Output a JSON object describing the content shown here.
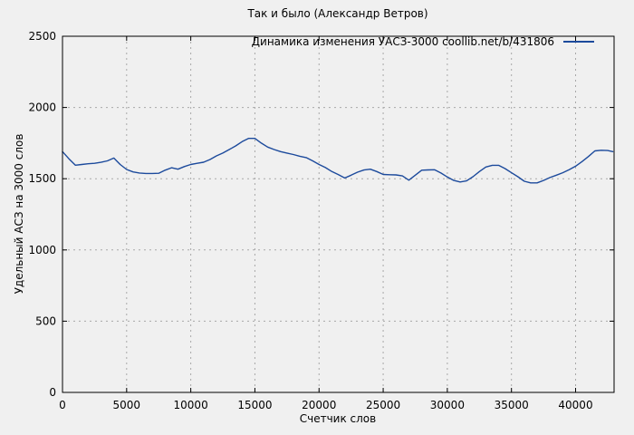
{
  "colors": {
    "background": "#f0f0f0",
    "plot_border": "#000000",
    "grid": "#a8a8a8",
    "text": "#000000",
    "line": "#1c4a9c"
  },
  "chart_data": {
    "type": "line",
    "title": "Так и было (Александр Ветров)",
    "xlabel": "Счетчик слов",
    "ylabel": "Удельный АСЗ на 3000 слов",
    "legend": {
      "label": "Динамика изменения УАСЗ-3000  coollib.net/b/431806",
      "position": "top-right-inside"
    },
    "xlim": [
      0,
      43000
    ],
    "ylim": [
      0,
      2500
    ],
    "x_ticks": [
      0,
      5000,
      10000,
      15000,
      20000,
      25000,
      30000,
      35000,
      40000
    ],
    "y_ticks": [
      0,
      500,
      1000,
      1500,
      2000,
      2500
    ],
    "grid": true,
    "series": [
      {
        "name": "Динамика изменения УАСЗ-3000  coollib.net/b/431806",
        "color": "#1c4a9c",
        "points": [
          [
            0,
            1690
          ],
          [
            500,
            1640
          ],
          [
            1000,
            1595
          ],
          [
            1500,
            1600
          ],
          [
            2000,
            1605
          ],
          [
            2500,
            1608
          ],
          [
            3000,
            1615
          ],
          [
            3500,
            1625
          ],
          [
            4000,
            1645
          ],
          [
            4500,
            1600
          ],
          [
            5000,
            1565
          ],
          [
            5500,
            1548
          ],
          [
            6000,
            1540
          ],
          [
            6500,
            1537
          ],
          [
            7000,
            1537
          ],
          [
            7500,
            1538
          ],
          [
            8000,
            1560
          ],
          [
            8500,
            1577
          ],
          [
            9000,
            1567
          ],
          [
            9500,
            1585
          ],
          [
            10000,
            1600
          ],
          [
            10500,
            1608
          ],
          [
            11000,
            1616
          ],
          [
            11500,
            1635
          ],
          [
            12000,
            1660
          ],
          [
            12500,
            1680
          ],
          [
            13000,
            1705
          ],
          [
            13500,
            1730
          ],
          [
            14000,
            1760
          ],
          [
            14500,
            1783
          ],
          [
            15000,
            1783
          ],
          [
            15500,
            1750
          ],
          [
            16000,
            1722
          ],
          [
            16500,
            1705
          ],
          [
            17000,
            1690
          ],
          [
            17500,
            1680
          ],
          [
            18000,
            1670
          ],
          [
            18500,
            1658
          ],
          [
            19000,
            1648
          ],
          [
            19500,
            1625
          ],
          [
            20000,
            1600
          ],
          [
            20500,
            1578
          ],
          [
            21000,
            1550
          ],
          [
            21500,
            1529
          ],
          [
            22000,
            1505
          ],
          [
            22500,
            1525
          ],
          [
            23000,
            1546
          ],
          [
            23500,
            1561
          ],
          [
            24000,
            1567
          ],
          [
            24500,
            1550
          ],
          [
            25000,
            1530
          ],
          [
            25500,
            1528
          ],
          [
            26000,
            1527
          ],
          [
            26500,
            1520
          ],
          [
            27000,
            1490
          ],
          [
            27500,
            1525
          ],
          [
            28000,
            1560
          ],
          [
            28500,
            1562
          ],
          [
            29000,
            1563
          ],
          [
            29500,
            1540
          ],
          [
            30000,
            1512
          ],
          [
            30500,
            1488
          ],
          [
            31000,
            1477
          ],
          [
            31500,
            1485
          ],
          [
            32000,
            1514
          ],
          [
            32500,
            1550
          ],
          [
            33000,
            1582
          ],
          [
            33500,
            1594
          ],
          [
            34000,
            1594
          ],
          [
            34500,
            1571
          ],
          [
            35000,
            1542
          ],
          [
            35500,
            1514
          ],
          [
            36000,
            1482
          ],
          [
            36500,
            1471
          ],
          [
            37000,
            1471
          ],
          [
            37500,
            1488
          ],
          [
            38000,
            1508
          ],
          [
            38500,
            1525
          ],
          [
            39000,
            1542
          ],
          [
            39500,
            1563
          ],
          [
            40000,
            1588
          ],
          [
            40500,
            1620
          ],
          [
            41000,
            1656
          ],
          [
            41500,
            1695
          ],
          [
            42000,
            1700
          ],
          [
            42500,
            1698
          ],
          [
            42900,
            1690
          ]
        ]
      }
    ]
  }
}
